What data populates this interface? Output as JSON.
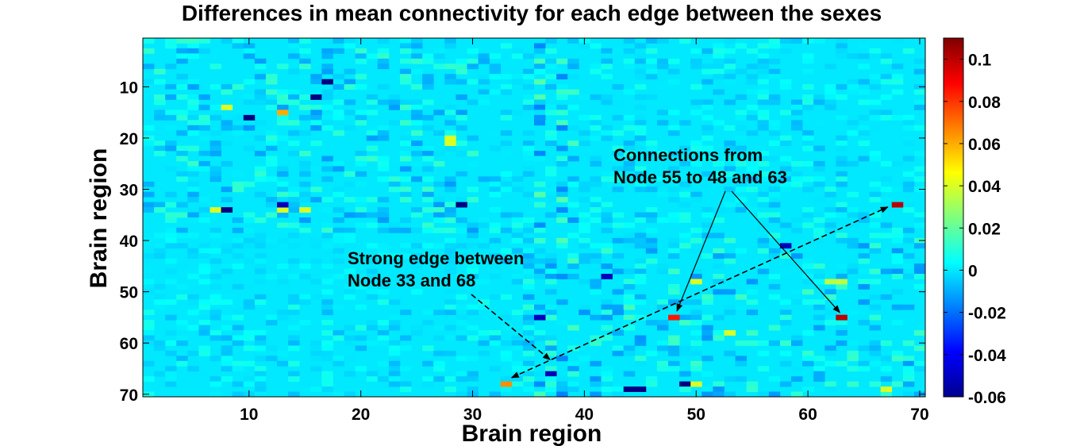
{
  "chart_data": {
    "type": "heatmap",
    "title": "Differences in mean connectivity for each edge between the sexes",
    "xlabel": "Brain region",
    "ylabel": "Brain region",
    "rows": 70,
    "cols": 70,
    "xlim": [
      0.5,
      70.5
    ],
    "ylim": [
      0.5,
      70.5
    ],
    "y_reversed": true,
    "x_ticks": [
      10,
      20,
      30,
      40,
      50,
      60,
      70
    ],
    "y_ticks": [
      10,
      20,
      30,
      40,
      50,
      60,
      70
    ],
    "background_value": 0,
    "colormap": "jet",
    "colorbar": {
      "min": -0.06,
      "max": 0.11,
      "ticks": [
        -0.06,
        -0.04,
        -0.02,
        0,
        0.02,
        0.04,
        0.06,
        0.08,
        0.1
      ],
      "tick_labels": [
        "-0.06",
        "-0.04",
        "-0.02",
        "0",
        "0.02",
        "0.04",
        "0.06",
        "0.08",
        "0.1"
      ]
    },
    "notable_cells": [
      {
        "row": 33,
        "col": 68,
        "value": 0.1
      },
      {
        "row": 68,
        "col": 33,
        "value": 0.065
      },
      {
        "row": 55,
        "col": 48,
        "value": 0.085
      },
      {
        "row": 55,
        "col": 63,
        "value": 0.1
      },
      {
        "row": 15,
        "col": 13,
        "value": 0.06
      },
      {
        "row": 14,
        "col": 8,
        "value": 0.04
      },
      {
        "row": 20,
        "col": 28,
        "value": 0.04
      },
      {
        "row": 21,
        "col": 28,
        "value": 0.04
      },
      {
        "row": 34,
        "col": 7,
        "value": 0.04
      },
      {
        "row": 34,
        "col": 13,
        "value": 0.04
      },
      {
        "row": 34,
        "col": 15,
        "value": 0.04
      },
      {
        "row": 48,
        "col": 50,
        "value": 0.04
      },
      {
        "row": 48,
        "col": 62,
        "value": 0.035
      },
      {
        "row": 48,
        "col": 63,
        "value": 0.035
      },
      {
        "row": 58,
        "col": 53,
        "value": 0.04
      },
      {
        "row": 68,
        "col": 50,
        "value": 0.04
      },
      {
        "row": 69,
        "col": 67,
        "value": 0.04
      },
      {
        "row": 12,
        "col": 16,
        "value": -0.06
      },
      {
        "row": 9,
        "col": 17,
        "value": -0.06
      },
      {
        "row": 16,
        "col": 10,
        "value": -0.06
      },
      {
        "row": 33,
        "col": 29,
        "value": -0.06
      },
      {
        "row": 33,
        "col": 13,
        "value": -0.05
      },
      {
        "row": 34,
        "col": 8,
        "value": -0.06
      },
      {
        "row": 41,
        "col": 58,
        "value": -0.05
      },
      {
        "row": 47,
        "col": 42,
        "value": -0.05
      },
      {
        "row": 55,
        "col": 36,
        "value": -0.05
      },
      {
        "row": 68,
        "col": 49,
        "value": -0.06
      },
      {
        "row": 69,
        "col": 44,
        "value": -0.06
      },
      {
        "row": 69,
        "col": 45,
        "value": -0.06
      },
      {
        "row": 66,
        "col": 37,
        "value": -0.05
      }
    ],
    "annotations": [
      {
        "text": [
          "Strong edge between",
          "Node 33 and 68"
        ],
        "points_to": [
          [
            33,
            68
          ],
          [
            68,
            33
          ]
        ]
      },
      {
        "text": [
          "Connections from",
          "Node 55 to 48 and 63"
        ],
        "points_to": [
          [
            48,
            55
          ],
          [
            63,
            55
          ]
        ]
      }
    ]
  }
}
